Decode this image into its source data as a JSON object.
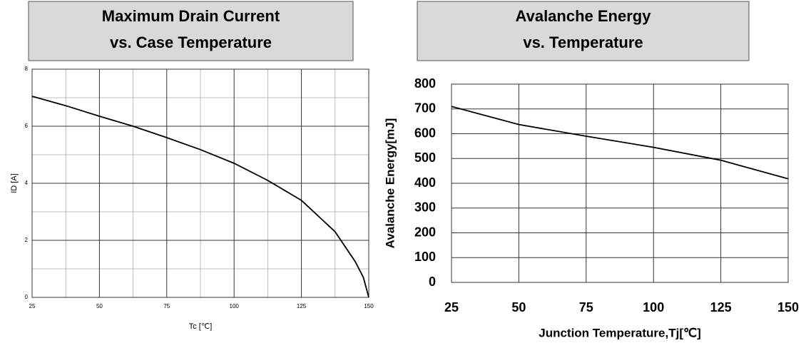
{
  "chart_data": [
    {
      "type": "line",
      "title": [
        "Maximum Drain Current",
        "vs. Case Temperature"
      ],
      "x_label": "Tc [℃]",
      "y_label": "ID [A]",
      "x": [
        25,
        37.5,
        50,
        62.5,
        75,
        87.5,
        100,
        112.5,
        125,
        137.5,
        145,
        148,
        150
      ],
      "values": [
        7.05,
        6.72,
        6.35,
        6.0,
        5.6,
        5.18,
        4.7,
        4.1,
        3.4,
        2.3,
        1.25,
        0.7,
        0
      ],
      "color": "#000000",
      "xlim": [
        25,
        150
      ],
      "ylim": [
        0,
        8
      ],
      "xticks": [
        25,
        50,
        75,
        100,
        125,
        150
      ],
      "yticks": [
        0,
        2,
        4,
        6,
        8
      ],
      "grid": true
    },
    {
      "type": "line",
      "title": [
        "Avalanche Energy",
        "vs. Temperature"
      ],
      "x_label": "Junction Temperature,Tj[℃]",
      "y_label": "Avalanche Energy[mJ]",
      "x": [
        25,
        50,
        75,
        100,
        125,
        150
      ],
      "values": [
        710,
        637,
        590,
        545,
        493,
        418
      ],
      "color": "#000000",
      "xlim": [
        25,
        150
      ],
      "ylim": [
        0,
        800
      ],
      "xticks": [
        25,
        50,
        75,
        100,
        125,
        150
      ],
      "yticks": [
        0,
        100,
        200,
        300,
        400,
        500,
        600,
        700,
        800
      ],
      "grid": true
    }
  ]
}
